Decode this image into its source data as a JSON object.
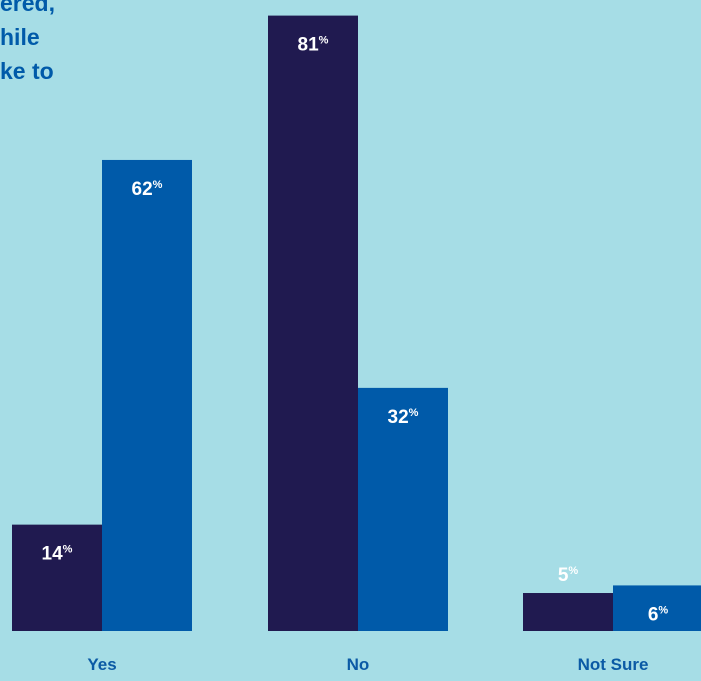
{
  "title_fragments": [
    "ered,",
    "hile",
    "ke to"
  ],
  "colors": {
    "background": "#a6dde6",
    "series_a": "#201a50",
    "series_b": "#005aa9",
    "text_accent": "#0b5aa5",
    "label_on_bar": "#ffffff"
  },
  "chart_data": {
    "type": "bar",
    "categories": [
      "Yes",
      "No",
      "Not Sure"
    ],
    "series": [
      {
        "values": [
          14,
          81,
          5
        ]
      },
      {
        "values": [
          62,
          32,
          6
        ]
      }
    ],
    "value_suffix": "%",
    "ylim": [
      0,
      82
    ],
    "grid": false,
    "legend": "none"
  }
}
